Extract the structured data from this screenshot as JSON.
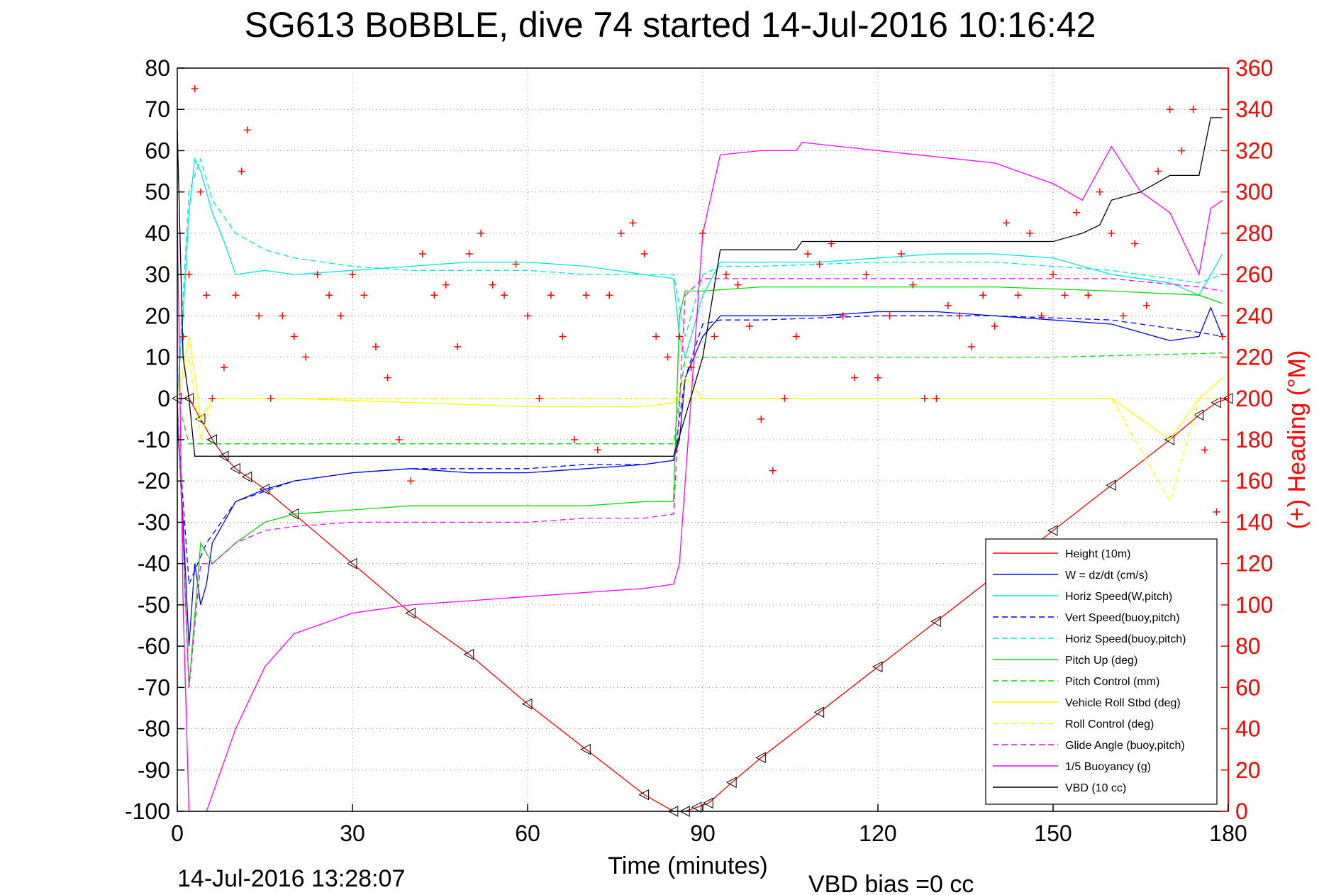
{
  "chart_data": {
    "type": "line",
    "title": "SG613 BoBBLE, dive 74 started 14-Jul-2016 10:16:42",
    "xlabel": "Time (minutes)",
    "ylabel_right": "(+) Heading (°M)",
    "xlim": [
      0,
      180
    ],
    "ylim": [
      -100,
      80
    ],
    "ylim_right": [
      0,
      360
    ],
    "x_ticks": [
      "0",
      "30",
      "60",
      "90",
      "120",
      "150",
      "180"
    ],
    "y_ticks": [
      "80",
      "70",
      "60",
      "50",
      "40",
      "30",
      "20",
      "10",
      "0",
      "-10",
      "-20",
      "-30",
      "-40",
      "-50",
      "-60",
      "-70",
      "-80",
      "-90",
      "-100"
    ],
    "y_ticks_right": [
      "360",
      "340",
      "320",
      "300",
      "280",
      "260",
      "240",
      "220",
      "200",
      "180",
      "160",
      "140",
      "120",
      "100",
      "80",
      "60",
      "40",
      "20",
      "0"
    ],
    "grid": true,
    "legend_position": "bottom-right",
    "footer_left": "14-Jul-2016 13:28:07",
    "footer_right": "VBD bias =0 cc",
    "series": [
      {
        "name": "Height (10m)",
        "color": "#ff0000",
        "style": "solid",
        "x": [
          0,
          2,
          4,
          6,
          8,
          10,
          12,
          15,
          20,
          30,
          40,
          50,
          60,
          70,
          80,
          85,
          87,
          89,
          91,
          95,
          100,
          110,
          120,
          130,
          140,
          150,
          160,
          170,
          175,
          178,
          180
        ],
        "y": [
          0,
          0,
          -5,
          -10,
          -14,
          -17,
          -19,
          -22,
          -28,
          -40,
          -52,
          -62,
          -74,
          -85,
          -96,
          -100,
          -100,
          -99,
          -98,
          -93,
          -87,
          -76,
          -65,
          -54,
          -43,
          -32,
          -21,
          -10,
          -4,
          -1,
          0
        ]
      },
      {
        "name": "W = dz/dt (cm/s)",
        "color": "#0000ff",
        "style": "solid",
        "x": [
          0,
          1,
          2,
          3,
          4,
          5,
          6,
          8,
          10,
          15,
          20,
          30,
          40,
          50,
          60,
          70,
          80,
          85,
          86,
          87,
          90,
          93,
          100,
          110,
          120,
          130,
          140,
          150,
          160,
          170,
          175,
          177,
          179
        ],
        "y": [
          -5,
          -30,
          -60,
          -40,
          -50,
          -45,
          -35,
          -30,
          -25,
          -22,
          -20,
          -18,
          -17,
          -18,
          -18,
          -17,
          -16,
          -15,
          -10,
          5,
          15,
          20,
          20,
          20,
          21,
          21,
          20,
          19,
          18,
          14,
          15,
          22,
          15
        ]
      },
      {
        "name": "Horiz Speed(W,pitch)",
        "color": "#00e5e5",
        "style": "solid",
        "x": [
          0,
          1,
          2,
          3,
          4,
          5,
          6,
          8,
          10,
          15,
          20,
          30,
          40,
          50,
          60,
          70,
          80,
          85,
          86,
          87,
          90,
          93,
          100,
          110,
          120,
          130,
          140,
          150,
          160,
          170,
          175,
          177,
          179
        ],
        "y": [
          0,
          20,
          45,
          58,
          55,
          50,
          45,
          38,
          30,
          31,
          30,
          31,
          32,
          33,
          33,
          32,
          30,
          29,
          15,
          10,
          25,
          33,
          33,
          33,
          34,
          35,
          35,
          34,
          30,
          28,
          25,
          30,
          35
        ]
      },
      {
        "name": "Vert Speed(buoy,pitch)",
        "color": "#0000ff",
        "style": "dashed",
        "x": [
          0,
          2,
          5,
          10,
          20,
          30,
          40,
          50,
          60,
          70,
          80,
          85,
          87,
          90,
          93,
          100,
          120,
          140,
          160,
          175,
          179
        ],
        "y": [
          -5,
          -45,
          -35,
          -25,
          -20,
          -18,
          -17,
          -17,
          -17,
          -16,
          -16,
          -15,
          5,
          18,
          19,
          19,
          20,
          20,
          19,
          16,
          15
        ]
      },
      {
        "name": "Horiz Speed(buoy,pitch)",
        "color": "#00e5e5",
        "style": "dashed",
        "x": [
          0,
          2,
          4,
          6,
          10,
          15,
          20,
          30,
          40,
          50,
          60,
          70,
          80,
          85,
          87,
          90,
          93,
          100,
          120,
          140,
          160,
          175,
          179
        ],
        "y": [
          0,
          50,
          58,
          48,
          40,
          36,
          34,
          32,
          31,
          31,
          31,
          30,
          30,
          30,
          15,
          30,
          32,
          32,
          33,
          33,
          31,
          28,
          30
        ]
      },
      {
        "name": "Pitch Up (deg)",
        "color": "#00dd00",
        "style": "solid",
        "x": [
          0,
          2,
          4,
          6,
          10,
          15,
          20,
          30,
          40,
          50,
          60,
          70,
          80,
          85,
          86,
          87,
          90,
          100,
          120,
          140,
          160,
          175,
          179
        ],
        "y": [
          0,
          -70,
          -35,
          -40,
          -35,
          -30,
          -28,
          -27,
          -26,
          -26,
          -26,
          -26,
          -25,
          -25,
          20,
          26,
          26,
          27,
          27,
          27,
          26,
          25,
          23
        ]
      },
      {
        "name": "Pitch Control (mm)",
        "color": "#00dd00",
        "style": "dashed",
        "x": [
          0,
          2,
          3,
          10,
          30,
          60,
          85,
          86,
          87,
          120,
          150,
          179
        ],
        "y": [
          0,
          -11,
          -11,
          -11,
          -11,
          -11,
          -11,
          0,
          10,
          10,
          10,
          11
        ]
      },
      {
        "name": "Vehicle Roll Stbd (deg)",
        "color": "#ffff00",
        "style": "solid",
        "x": [
          0,
          2,
          4,
          6,
          10,
          20,
          40,
          60,
          80,
          85,
          87,
          90,
          100,
          120,
          140,
          160,
          170,
          175,
          179
        ],
        "y": [
          0,
          15,
          -5,
          0,
          0,
          0,
          -1,
          -2,
          -2,
          -1,
          5,
          0,
          0,
          0,
          0,
          0,
          -10,
          0,
          5
        ]
      },
      {
        "name": "Roll Control (deg)",
        "color": "#ffff00",
        "style": "dashed",
        "x": [
          0,
          2,
          4,
          6,
          10,
          20,
          40,
          60,
          80,
          85,
          87,
          90,
          100,
          120,
          140,
          160,
          170,
          175,
          179
        ],
        "y": [
          0,
          10,
          -10,
          0,
          0,
          0,
          0,
          0,
          0,
          0,
          0,
          0,
          0,
          0,
          0,
          0,
          -25,
          0,
          0
        ]
      },
      {
        "name": "Glide Angle (buoy,pitch)",
        "color": "#ff00ff",
        "style": "dashed",
        "x": [
          0,
          2,
          4,
          6,
          10,
          15,
          20,
          30,
          40,
          50,
          60,
          70,
          80,
          85,
          87,
          90,
          100,
          120,
          140,
          160,
          175,
          179
        ],
        "y": [
          0,
          -70,
          -40,
          -40,
          -35,
          -32,
          -31,
          -30,
          -30,
          -30,
          -30,
          -29,
          -29,
          -28,
          25,
          29,
          29,
          29,
          29,
          29,
          27,
          26
        ]
      },
      {
        "name": "1/5 Buoyancy (g)",
        "color": "#ff00ff",
        "style": "solid",
        "x": [
          0,
          1,
          2,
          3,
          5,
          10,
          15,
          20,
          30,
          40,
          50,
          60,
          70,
          80,
          85,
          86,
          90,
          93,
          100,
          106,
          107,
          120,
          140,
          150,
          155,
          160,
          165,
          170,
          175,
          177,
          179
        ],
        "y": [
          45,
          -50,
          -100,
          -100,
          -100,
          -80,
          -65,
          -57,
          -52,
          -50,
          -49,
          -48,
          -47,
          -46,
          -45,
          -40,
          40,
          59,
          60,
          60,
          62,
          60,
          57,
          52,
          48,
          61,
          50,
          45,
          30,
          46,
          48
        ]
      },
      {
        "name": "VBD (10 cc)",
        "color": "#000000",
        "style": "solid",
        "x": [
          0,
          1,
          2,
          3,
          30,
          60,
          84,
          85,
          90,
          93,
          100,
          106,
          107,
          120,
          130,
          150,
          155,
          158,
          160,
          165,
          170,
          175,
          177,
          179
        ],
        "y": [
          65,
          10,
          0,
          -14,
          -14,
          -14,
          -14,
          -14,
          10,
          36,
          36,
          36,
          38,
          38,
          38,
          38,
          40,
          42,
          48,
          50,
          54,
          54,
          68,
          68
        ]
      },
      {
        "name": "Heading",
        "color": "#ff0000",
        "style": "markers",
        "axis": "right",
        "x": [
          1,
          2,
          3,
          4,
          5,
          6,
          8,
          10,
          11,
          12,
          14,
          16,
          18,
          20,
          22,
          24,
          26,
          28,
          30,
          32,
          34,
          36,
          38,
          40,
          42,
          44,
          46,
          48,
          50,
          52,
          54,
          56,
          58,
          60,
          62,
          64,
          66,
          68,
          70,
          72,
          74,
          76,
          78,
          80,
          82,
          84,
          86,
          88,
          90,
          92,
          94,
          96,
          98,
          100,
          102,
          104,
          106,
          108,
          110,
          112,
          114,
          116,
          118,
          120,
          122,
          124,
          126,
          128,
          130,
          132,
          134,
          136,
          138,
          140,
          142,
          144,
          146,
          148,
          150,
          152,
          154,
          156,
          158,
          160,
          162,
          164,
          166,
          168,
          170,
          172,
          174,
          176,
          178,
          179
        ],
        "y": [
          230,
          260,
          350,
          300,
          250,
          200,
          215,
          250,
          310,
          330,
          240,
          200,
          240,
          230,
          220,
          260,
          250,
          240,
          260,
          250,
          225,
          210,
          180,
          160,
          270,
          250,
          255,
          225,
          270,
          280,
          255,
          250,
          265,
          240,
          200,
          250,
          230,
          180,
          250,
          175,
          250,
          280,
          285,
          270,
          230,
          220,
          230,
          215,
          280,
          230,
          260,
          255,
          235,
          190,
          165,
          200,
          230,
          270,
          265,
          275,
          240,
          210,
          260,
          210,
          240,
          270,
          255,
          200,
          200,
          245,
          240,
          225,
          250,
          235,
          285,
          250,
          280,
          240,
          260,
          250,
          290,
          250,
          300,
          280,
          240,
          275,
          245,
          310,
          340,
          320,
          340,
          175,
          145,
          230
        ]
      }
    ]
  }
}
